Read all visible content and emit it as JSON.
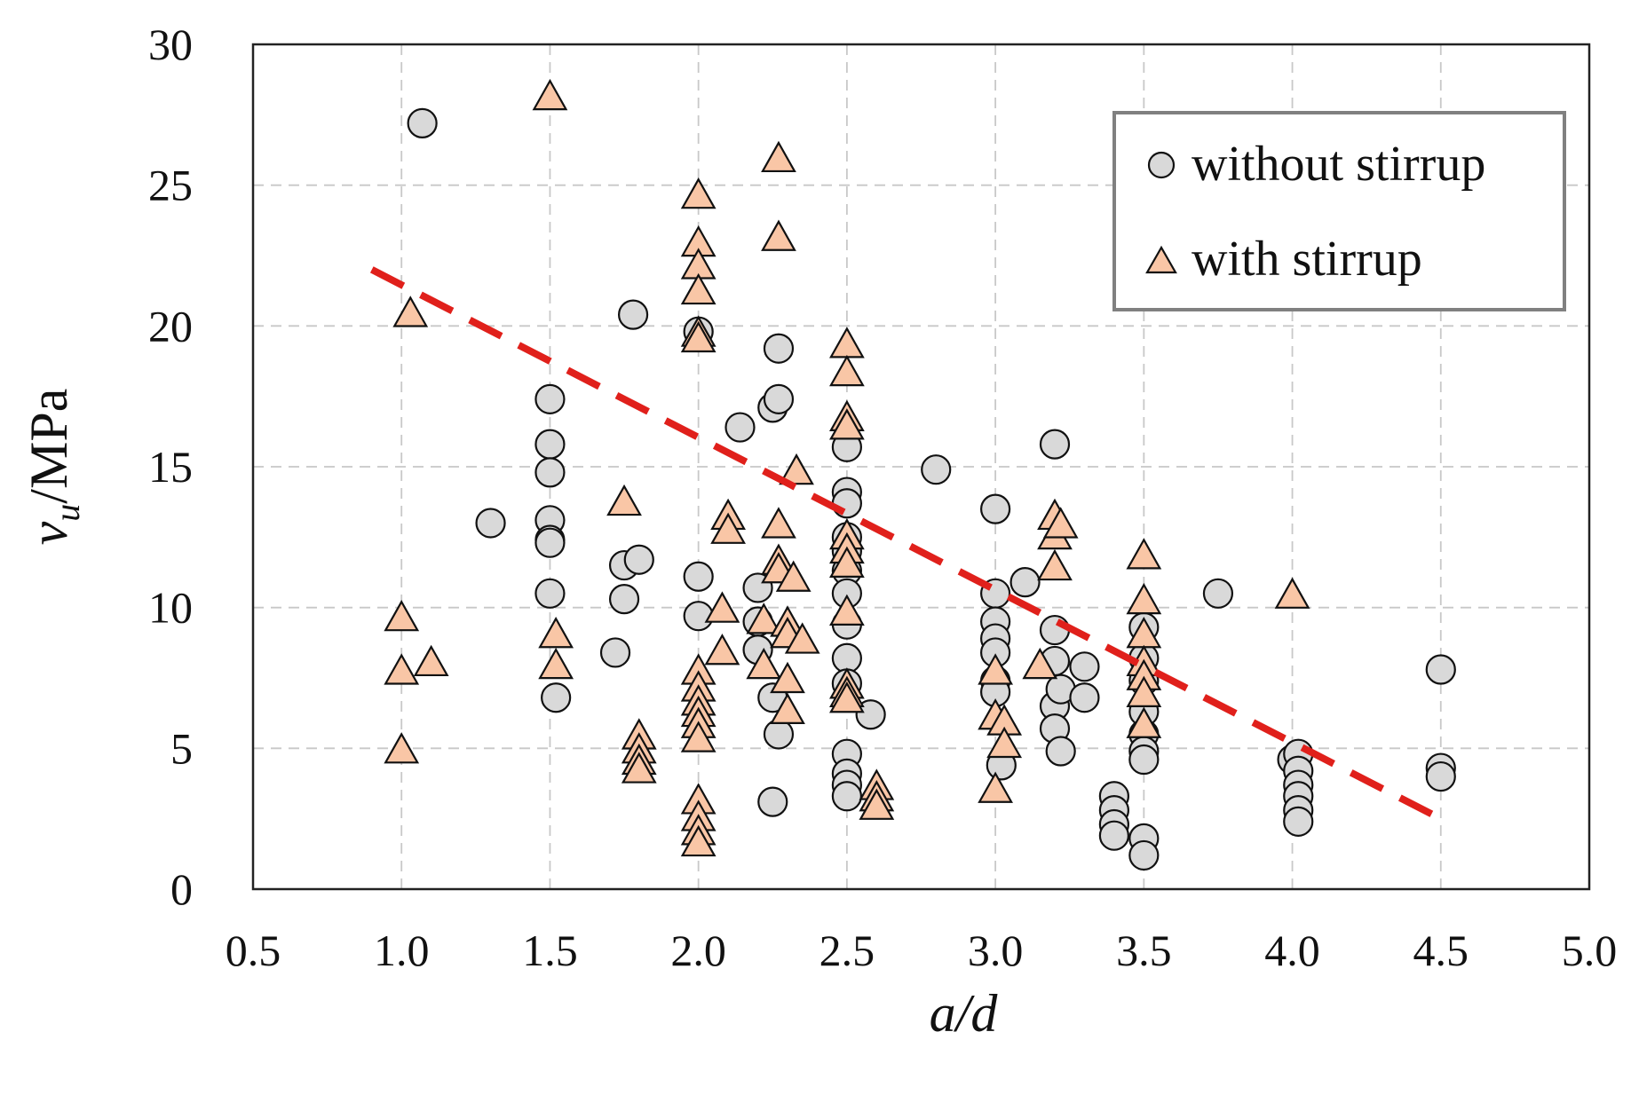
{
  "chart_data": {
    "type": "scatter",
    "title": "",
    "xlabel": "a/d",
    "ylabel_main": "v",
    "ylabel_sub": "u",
    "ylabel_unit": "/MPa",
    "xlim": [
      0.5,
      5.0
    ],
    "ylim": [
      0,
      30
    ],
    "xticks": [
      "0.5",
      "1.0",
      "1.5",
      "2.0",
      "2.5",
      "3.0",
      "3.5",
      "4.0",
      "4.5",
      "5.0"
    ],
    "yticks": [
      "0",
      "5",
      "10",
      "15",
      "20",
      "25",
      "30"
    ],
    "grid": true,
    "legend_position": "top-right",
    "colors": {
      "circle_fill": "#d9d9d9",
      "triangle_fill": "#f9c6a6",
      "marker_stroke": "#111111",
      "trend": "#e0201b",
      "grid": "#c8c8c8",
      "legend_border": "#808080"
    },
    "series": [
      {
        "name": "without stirrup",
        "marker": "circle",
        "points": [
          [
            1.07,
            27.2
          ],
          [
            1.3,
            13.0
          ],
          [
            1.5,
            17.4
          ],
          [
            1.5,
            15.8
          ],
          [
            1.5,
            14.8
          ],
          [
            1.5,
            13.1
          ],
          [
            1.5,
            12.4
          ],
          [
            1.5,
            12.3
          ],
          [
            1.5,
            10.5
          ],
          [
            1.52,
            6.8
          ],
          [
            1.72,
            8.4
          ],
          [
            1.75,
            11.5
          ],
          [
            1.75,
            10.3
          ],
          [
            1.78,
            20.4
          ],
          [
            1.8,
            11.7
          ],
          [
            2.0,
            19.8
          ],
          [
            2.0,
            11.1
          ],
          [
            2.0,
            9.7
          ],
          [
            2.14,
            16.4
          ],
          [
            2.2,
            10.7
          ],
          [
            2.2,
            9.5
          ],
          [
            2.2,
            8.5
          ],
          [
            2.25,
            17.1
          ],
          [
            2.27,
            17.4
          ],
          [
            2.27,
            19.2
          ],
          [
            2.25,
            6.8
          ],
          [
            2.27,
            5.5
          ],
          [
            2.25,
            3.1
          ],
          [
            2.5,
            15.7
          ],
          [
            2.5,
            14.1
          ],
          [
            2.5,
            13.7
          ],
          [
            2.5,
            12.5
          ],
          [
            2.5,
            12.0
          ],
          [
            2.5,
            11.3
          ],
          [
            2.5,
            10.5
          ],
          [
            2.5,
            9.4
          ],
          [
            2.5,
            8.2
          ],
          [
            2.5,
            7.3
          ],
          [
            2.5,
            4.8
          ],
          [
            2.5,
            4.1
          ],
          [
            2.5,
            3.7
          ],
          [
            2.5,
            3.3
          ],
          [
            2.58,
            6.2
          ],
          [
            2.8,
            14.9
          ],
          [
            3.0,
            13.5
          ],
          [
            3.0,
            10.5
          ],
          [
            3.0,
            9.5
          ],
          [
            3.0,
            8.9
          ],
          [
            3.0,
            8.4
          ],
          [
            3.0,
            7.4
          ],
          [
            3.0,
            7.0
          ],
          [
            3.02,
            4.4
          ],
          [
            3.1,
            10.9
          ],
          [
            3.2,
            15.8
          ],
          [
            3.2,
            9.2
          ],
          [
            3.2,
            8.1
          ],
          [
            3.2,
            6.5
          ],
          [
            3.2,
            5.7
          ],
          [
            3.22,
            7.1
          ],
          [
            3.22,
            4.9
          ],
          [
            3.3,
            7.9
          ],
          [
            3.3,
            6.8
          ],
          [
            3.4,
            3.3
          ],
          [
            3.4,
            2.8
          ],
          [
            3.4,
            2.3
          ],
          [
            3.4,
            1.9
          ],
          [
            3.5,
            9.3
          ],
          [
            3.5,
            8.2
          ],
          [
            3.5,
            7.4
          ],
          [
            3.5,
            6.3
          ],
          [
            3.5,
            5.5
          ],
          [
            3.5,
            4.9
          ],
          [
            3.5,
            4.6
          ],
          [
            3.5,
            1.8
          ],
          [
            3.5,
            1.2
          ],
          [
            3.75,
            10.5
          ],
          [
            4.0,
            4.6
          ],
          [
            4.02,
            4.8
          ],
          [
            4.02,
            4.2
          ],
          [
            4.02,
            3.7
          ],
          [
            4.02,
            3.3
          ],
          [
            4.02,
            2.8
          ],
          [
            4.02,
            2.4
          ],
          [
            4.5,
            7.8
          ],
          [
            4.5,
            4.3
          ],
          [
            4.5,
            4.0
          ]
        ]
      },
      {
        "name": "with stirrup",
        "marker": "triangle",
        "points": [
          [
            1.0,
            9.7
          ],
          [
            1.0,
            7.8
          ],
          [
            1.0,
            5.0
          ],
          [
            1.03,
            20.5
          ],
          [
            1.1,
            8.1
          ],
          [
            1.5,
            28.2
          ],
          [
            1.52,
            9.1
          ],
          [
            1.52,
            8.0
          ],
          [
            1.75,
            13.8
          ],
          [
            1.8,
            5.5
          ],
          [
            1.8,
            5.0
          ],
          [
            1.8,
            4.6
          ],
          [
            1.8,
            4.3
          ],
          [
            2.0,
            24.7
          ],
          [
            2.0,
            23.0
          ],
          [
            2.0,
            22.2
          ],
          [
            2.0,
            21.3
          ],
          [
            2.0,
            19.8
          ],
          [
            2.0,
            19.6
          ],
          [
            2.0,
            7.8
          ],
          [
            2.0,
            7.2
          ],
          [
            2.0,
            6.7
          ],
          [
            2.0,
            6.3
          ],
          [
            2.0,
            5.9
          ],
          [
            2.0,
            5.4
          ],
          [
            2.0,
            3.2
          ],
          [
            2.0,
            2.6
          ],
          [
            2.0,
            2.1
          ],
          [
            2.0,
            1.7
          ],
          [
            2.1,
            13.3
          ],
          [
            2.1,
            12.8
          ],
          [
            2.08,
            10.0
          ],
          [
            2.08,
            8.5
          ],
          [
            2.22,
            9.6
          ],
          [
            2.22,
            8.0
          ],
          [
            2.27,
            26.0
          ],
          [
            2.27,
            23.2
          ],
          [
            2.27,
            13.0
          ],
          [
            2.27,
            11.7
          ],
          [
            2.27,
            11.4
          ],
          [
            2.3,
            9.5
          ],
          [
            2.3,
            9.1
          ],
          [
            2.3,
            7.5
          ],
          [
            2.3,
            6.4
          ],
          [
            2.32,
            11.1
          ],
          [
            2.33,
            14.9
          ],
          [
            2.35,
            8.9
          ],
          [
            2.5,
            19.4
          ],
          [
            2.5,
            18.4
          ],
          [
            2.5,
            16.8
          ],
          [
            2.5,
            16.5
          ],
          [
            2.5,
            12.6
          ],
          [
            2.5,
            12.1
          ],
          [
            2.5,
            11.6
          ],
          [
            2.5,
            9.9
          ],
          [
            2.5,
            7.3
          ],
          [
            2.5,
            7.0
          ],
          [
            2.5,
            6.8
          ],
          [
            2.6,
            3.7
          ],
          [
            2.6,
            3.3
          ],
          [
            2.6,
            3.0
          ],
          [
            3.0,
            7.8
          ],
          [
            3.0,
            6.2
          ],
          [
            3.0,
            3.6
          ],
          [
            3.03,
            6.0
          ],
          [
            3.03,
            5.2
          ],
          [
            3.15,
            8.0
          ],
          [
            3.2,
            13.3
          ],
          [
            3.2,
            12.6
          ],
          [
            3.2,
            11.5
          ],
          [
            3.22,
            13.0
          ],
          [
            3.5,
            11.9
          ],
          [
            3.5,
            10.3
          ],
          [
            3.5,
            9.1
          ],
          [
            3.5,
            8.1
          ],
          [
            3.5,
            7.6
          ],
          [
            3.5,
            7.0
          ],
          [
            3.5,
            5.9
          ],
          [
            4.0,
            10.5
          ]
        ]
      }
    ],
    "trendline": {
      "x": [
        0.9,
        4.5
      ],
      "y": [
        22.0,
        2.5
      ],
      "style": "dashed"
    }
  }
}
